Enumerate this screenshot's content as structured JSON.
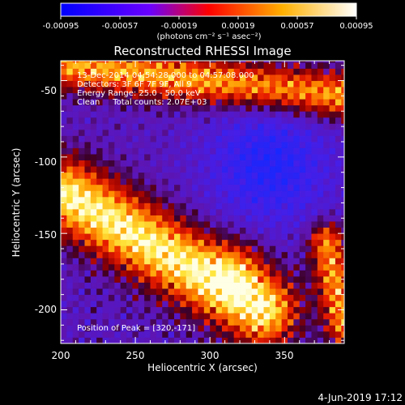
{
  "colorbar": {
    "ticks": [
      "-0.00095",
      "-0.00057",
      "-0.00019",
      "0.00019",
      "0.00057",
      "0.00095"
    ],
    "units": "(photons cm⁻² s⁻¹ asec⁻²)"
  },
  "title": "Reconstructed RHESSI Image",
  "info": {
    "line1": "13-Dec-2014 04:54:28.000 to 04:57:08.000",
    "line2": "Detectors: 3F 6F 7F 9F, All 9",
    "line3": "Energy Range: 25.0 - 50.0 keV",
    "line4": "Clean     Total counts: 2.07E+03"
  },
  "peak": "Position of Peak = [320,-171]",
  "footer_date": "4-Jun-2019 17:12",
  "chart_data": {
    "type": "heatmap",
    "title": "Reconstructed RHESSI Image",
    "xlabel": "Heliocentric X (arcsec)",
    "ylabel": "Heliocentric Y (arcsec)",
    "xlim": [
      200,
      390
    ],
    "ylim": [
      -222,
      -37
    ],
    "xticks": [
      200,
      250,
      300,
      350
    ],
    "yticks": [
      -50,
      -100,
      -150,
      -200
    ],
    "colorbar_range": [
      -0.00095,
      0.00095
    ],
    "peak_position": [
      320,
      -171
    ],
    "colormap": "blue-purple-red-yellow-white",
    "features": [
      {
        "name": "main ribbon",
        "from": [
          205,
          -125
        ],
        "to": [
          335,
          -200
        ]
      },
      {
        "name": "northern ribbon",
        "from": [
          205,
          -40
        ],
        "to": [
          390,
          -60
        ]
      },
      {
        "name": "eastern source",
        "from": [
          378,
          -155
        ],
        "to": [
          390,
          -210
        ]
      }
    ]
  }
}
